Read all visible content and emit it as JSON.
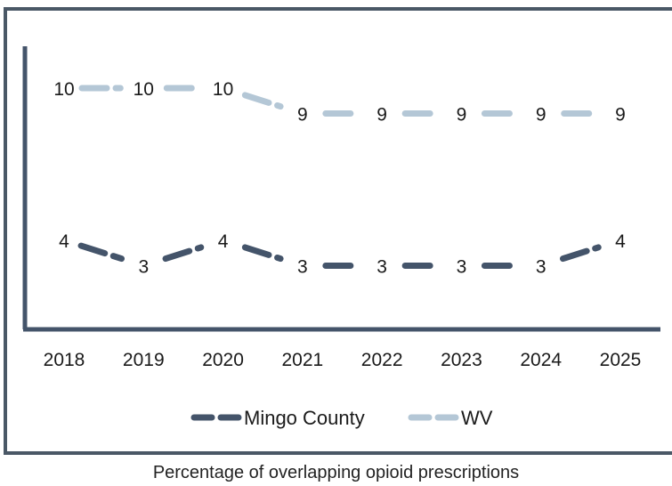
{
  "chart_data": {
    "type": "line",
    "categories": [
      "2018",
      "2019",
      "2020",
      "2021",
      "2022",
      "2023",
      "2024",
      "2025"
    ],
    "series": [
      {
        "name": "Mingo County",
        "values": [
          4,
          3,
          4,
          3,
          3,
          3,
          3,
          4
        ],
        "color": "#44546a",
        "line_style": "dashed"
      },
      {
        "name": "WV",
        "values": [
          10,
          10,
          10,
          9,
          9,
          9,
          9,
          9
        ],
        "color": "#b4c7d6",
        "line_style": "dashed"
      }
    ],
    "title": "",
    "xlabel": "",
    "ylabel": "",
    "y_axis_visible": false,
    "data_labels": true,
    "grid": false,
    "legend_position": "bottom",
    "caption": "Percentage of overlapping opioid prescriptions"
  }
}
